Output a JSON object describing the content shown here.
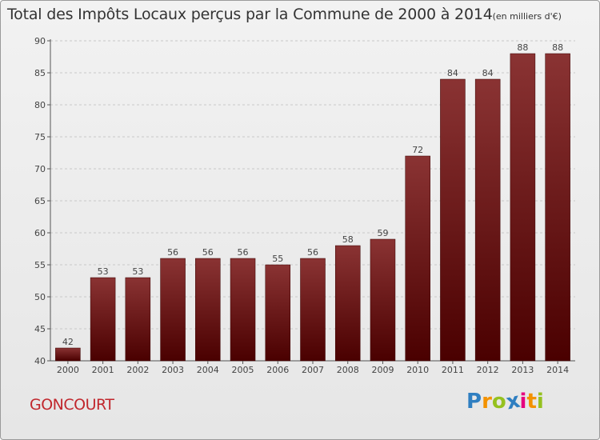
{
  "chart_data": {
    "type": "bar",
    "title": "Total des Impôts Locaux perçus par la Commune de 2000 à 2014",
    "subtitle": "(en milliers d'€)",
    "categories": [
      "2000",
      "2001",
      "2002",
      "2003",
      "2004",
      "2005",
      "2006",
      "2007",
      "2008",
      "2009",
      "2010",
      "2011",
      "2012",
      "2013",
      "2014"
    ],
    "values": [
      42,
      53,
      53,
      56,
      56,
      56,
      55,
      56,
      58,
      59,
      72,
      84,
      84,
      88,
      88
    ],
    "data_labels": [
      "42",
      "53",
      "53",
      "56",
      "56",
      "56",
      "55",
      "56",
      "58",
      "59",
      "72",
      "84",
      "84",
      "88",
      "88"
    ],
    "ylim": [
      40,
      90
    ],
    "yticks": [
      "40",
      "45",
      "50",
      "55",
      "60",
      "65",
      "70",
      "75",
      "80",
      "85",
      "90"
    ],
    "xlabel": "",
    "ylabel": "",
    "grid": true,
    "bar_color_top": "#8a3333",
    "bar_color_bottom": "#4a0000"
  },
  "footer": {
    "commune": "GONCOURT",
    "logo_letters": [
      "P",
      "r",
      "o",
      "x",
      "i",
      "t",
      "i"
    ],
    "logo_colors": [
      "#2f7fc1",
      "#f39200",
      "#95c11f",
      "#2f7fc1",
      "#e6007e",
      "#f39200",
      "#95c11f"
    ]
  }
}
